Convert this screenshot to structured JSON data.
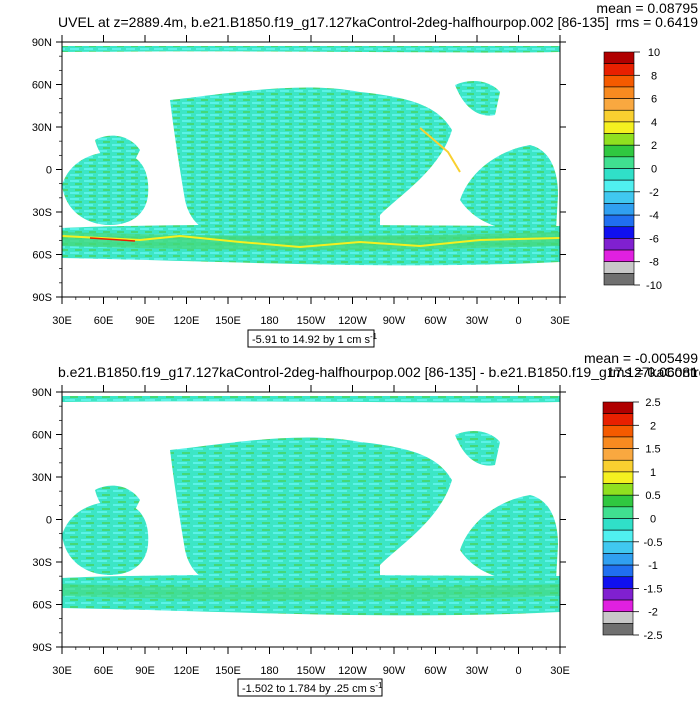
{
  "chart_data": [
    {
      "type": "heatmap",
      "title": "UVEL at z=2889.4m, b.e21.B1850.f19_g17.127kaControl-2deg-halfhourpop.002 [86-135]",
      "stats_mean": "mean = 0.08795",
      "stats_rms": "rms = 0.6419",
      "lat_ticks": [
        "90N",
        "60N",
        "30N",
        "0",
        "30S",
        "60S",
        "90S"
      ],
      "lon_ticks": [
        "30E",
        "60E",
        "90E",
        "120E",
        "150E",
        "180",
        "150W",
        "120W",
        "90W",
        "60W",
        "30W",
        "0",
        "30E"
      ],
      "contour_info": "-5.91 to 14.92 by 1 cm s",
      "contour_unit_exp": "-1",
      "colorbar_labels": [
        "10",
        "8",
        "6",
        "4",
        "2",
        "0",
        "-2",
        "-4",
        "-6",
        "-8",
        "-10"
      ],
      "colorbar_colors": [
        "#b00000",
        "#e82000",
        "#f55a00",
        "#f88a20",
        "#f9a840",
        "#f9d030",
        "#f5f020",
        "#90e020",
        "#30c840",
        "#40e090",
        "#30e0c8",
        "#50f0f0",
        "#40c8f0",
        "#30a0f0",
        "#2070f0",
        "#1010f0",
        "#8020d0",
        "#e020e0",
        "#c8c8c8",
        "#707070"
      ],
      "ylim": [
        -90,
        90
      ],
      "xlim": [
        30,
        390
      ]
    },
    {
      "type": "heatmap",
      "title": "b.e21.B1850.f19_g17.127kaControl-2deg-halfhourpop.002 [86-135] - b.e21.B1850.f19_g17.127kaControl",
      "stats_mean": "mean = -0.005499",
      "stats_rms": "rms = 0.06081",
      "lat_ticks": [
        "90N",
        "60N",
        "30N",
        "0",
        "30S",
        "60S",
        "90S"
      ],
      "lon_ticks": [
        "30E",
        "60E",
        "90E",
        "120E",
        "150E",
        "180",
        "150W",
        "120W",
        "90W",
        "60W",
        "30W",
        "0",
        "30E"
      ],
      "contour_info": "-1.502 to 1.784 by .25 cm s",
      "contour_unit_exp": "-1",
      "colorbar_labels": [
        "2.5",
        "2",
        "1.5",
        "1",
        "0.5",
        "0",
        "-0.5",
        "-1",
        "-1.5",
        "-2",
        "-2.5"
      ],
      "colorbar_colors": [
        "#b00000",
        "#e82000",
        "#f55a00",
        "#f88a20",
        "#f9a840",
        "#f9d030",
        "#f5f020",
        "#90e020",
        "#30c840",
        "#40e090",
        "#30e0c8",
        "#50f0f0",
        "#40c8f0",
        "#30a0f0",
        "#2070f0",
        "#1010f0",
        "#8020d0",
        "#e020e0",
        "#c8c8c8",
        "#707070"
      ],
      "ylim": [
        -90,
        90
      ],
      "xlim": [
        30,
        390
      ]
    }
  ]
}
